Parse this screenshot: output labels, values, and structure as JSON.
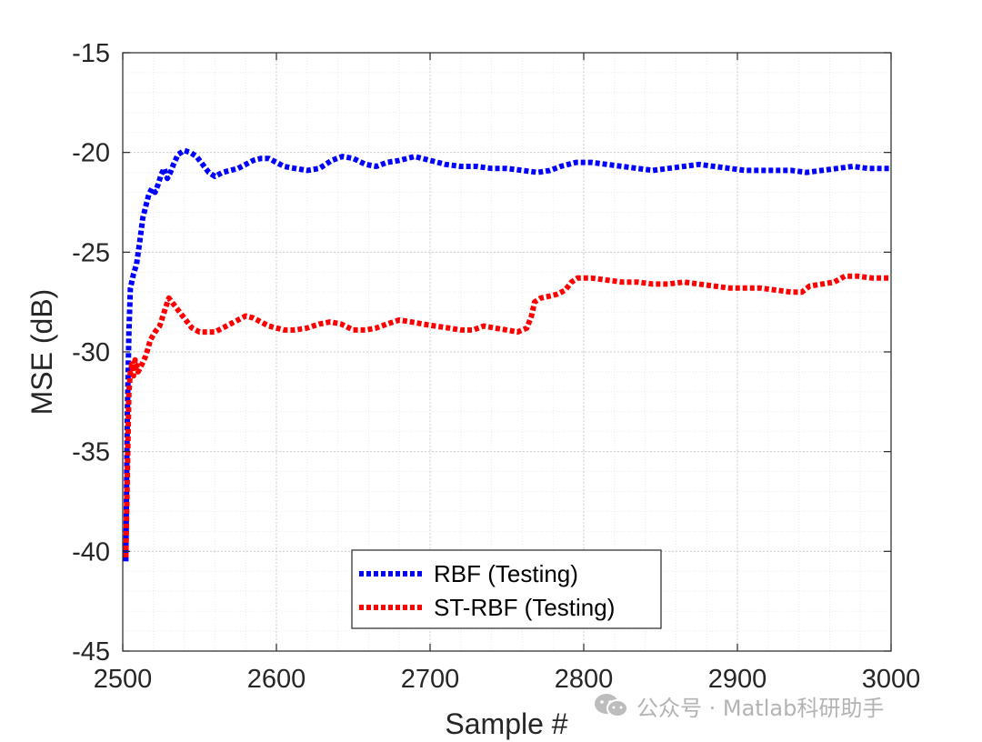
{
  "chart_data": {
    "type": "line",
    "xlabel": "Sample #",
    "ylabel": "MSE (dB)",
    "xlim": [
      2500,
      3000
    ],
    "ylim": [
      -45,
      -15
    ],
    "xticks": [
      2500,
      2600,
      2700,
      2800,
      2900,
      3000
    ],
    "yticks": [
      -15,
      -20,
      -25,
      -30,
      -35,
      -40,
      -45
    ],
    "grid": "major and minor, dotted",
    "legend_position": "bottom-center",
    "line_style": "dotted",
    "series": [
      {
        "name": "RBF (Testing)",
        "color": "#0000ff",
        "points": [
          [
            2502,
            -40.5
          ],
          [
            2503,
            -33
          ],
          [
            2504,
            -29
          ],
          [
            2505,
            -26.8
          ],
          [
            2507,
            -26.1
          ],
          [
            2509,
            -25.6
          ],
          [
            2511,
            -24.5
          ],
          [
            2513,
            -23.3
          ],
          [
            2515,
            -22.7
          ],
          [
            2517,
            -22.1
          ],
          [
            2519,
            -21.8
          ],
          [
            2521,
            -22.0
          ],
          [
            2523,
            -21.6
          ],
          [
            2525,
            -21.1
          ],
          [
            2527,
            -20.8
          ],
          [
            2529,
            -21.3
          ],
          [
            2531,
            -21.0
          ],
          [
            2533,
            -20.6
          ],
          [
            2536,
            -20.1
          ],
          [
            2540,
            -19.9
          ],
          [
            2544,
            -20.0
          ],
          [
            2548,
            -20.2
          ],
          [
            2552,
            -20.6
          ],
          [
            2556,
            -21.0
          ],
          [
            2560,
            -21.2
          ],
          [
            2565,
            -21.0
          ],
          [
            2570,
            -20.9
          ],
          [
            2575,
            -20.8
          ],
          [
            2580,
            -20.6
          ],
          [
            2585,
            -20.4
          ],
          [
            2590,
            -20.3
          ],
          [
            2595,
            -20.3
          ],
          [
            2600,
            -20.5
          ],
          [
            2605,
            -20.7
          ],
          [
            2612,
            -20.8
          ],
          [
            2620,
            -20.9
          ],
          [
            2628,
            -20.8
          ],
          [
            2636,
            -20.4
          ],
          [
            2643,
            -20.2
          ],
          [
            2650,
            -20.3
          ],
          [
            2658,
            -20.6
          ],
          [
            2665,
            -20.7
          ],
          [
            2672,
            -20.5
          ],
          [
            2680,
            -20.4
          ],
          [
            2690,
            -20.2
          ],
          [
            2700,
            -20.4
          ],
          [
            2710,
            -20.6
          ],
          [
            2720,
            -20.7
          ],
          [
            2730,
            -20.7
          ],
          [
            2740,
            -20.8
          ],
          [
            2750,
            -20.8
          ],
          [
            2760,
            -20.9
          ],
          [
            2770,
            -21.0
          ],
          [
            2778,
            -20.9
          ],
          [
            2785,
            -20.7
          ],
          [
            2795,
            -20.5
          ],
          [
            2805,
            -20.5
          ],
          [
            2815,
            -20.6
          ],
          [
            2825,
            -20.7
          ],
          [
            2835,
            -20.8
          ],
          [
            2845,
            -20.9
          ],
          [
            2855,
            -20.8
          ],
          [
            2865,
            -20.7
          ],
          [
            2875,
            -20.6
          ],
          [
            2885,
            -20.7
          ],
          [
            2895,
            -20.8
          ],
          [
            2905,
            -20.9
          ],
          [
            2915,
            -20.9
          ],
          [
            2925,
            -20.9
          ],
          [
            2935,
            -20.9
          ],
          [
            2945,
            -21.0
          ],
          [
            2955,
            -20.9
          ],
          [
            2965,
            -20.8
          ],
          [
            2975,
            -20.7
          ],
          [
            2985,
            -20.8
          ],
          [
            2995,
            -20.8
          ],
          [
            3000,
            -20.8
          ]
        ]
      },
      {
        "name": "ST-RBF (Testing)",
        "color": "#ff0000",
        "points": [
          [
            2502,
            -40.3
          ],
          [
            2503,
            -36
          ],
          [
            2504,
            -32
          ],
          [
            2505,
            -31
          ],
          [
            2506,
            -30.6
          ],
          [
            2507,
            -31.2
          ],
          [
            2508,
            -30.4
          ],
          [
            2510,
            -31.0
          ],
          [
            2512,
            -30.7
          ],
          [
            2515,
            -30.2
          ],
          [
            2518,
            -29.4
          ],
          [
            2521,
            -29.0
          ],
          [
            2524,
            -28.7
          ],
          [
            2527,
            -28.0
          ],
          [
            2530,
            -27.3
          ],
          [
            2533,
            -27.6
          ],
          [
            2537,
            -28.0
          ],
          [
            2541,
            -28.4
          ],
          [
            2545,
            -28.8
          ],
          [
            2550,
            -29.0
          ],
          [
            2555,
            -29.0
          ],
          [
            2560,
            -29.0
          ],
          [
            2565,
            -28.8
          ],
          [
            2570,
            -28.6
          ],
          [
            2575,
            -28.4
          ],
          [
            2580,
            -28.2
          ],
          [
            2585,
            -28.3
          ],
          [
            2590,
            -28.5
          ],
          [
            2595,
            -28.7
          ],
          [
            2600,
            -28.8
          ],
          [
            2605,
            -28.9
          ],
          [
            2612,
            -28.9
          ],
          [
            2620,
            -28.8
          ],
          [
            2628,
            -28.6
          ],
          [
            2635,
            -28.5
          ],
          [
            2642,
            -28.6
          ],
          [
            2650,
            -28.9
          ],
          [
            2658,
            -28.9
          ],
          [
            2665,
            -28.8
          ],
          [
            2672,
            -28.6
          ],
          [
            2680,
            -28.4
          ],
          [
            2688,
            -28.5
          ],
          [
            2695,
            -28.6
          ],
          [
            2703,
            -28.7
          ],
          [
            2712,
            -28.8
          ],
          [
            2720,
            -28.9
          ],
          [
            2728,
            -28.9
          ],
          [
            2735,
            -28.7
          ],
          [
            2742,
            -28.8
          ],
          [
            2750,
            -28.9
          ],
          [
            2757,
            -29.0
          ],
          [
            2763,
            -28.8
          ],
          [
            2766,
            -28.2
          ],
          [
            2768,
            -27.5
          ],
          [
            2772,
            -27.3
          ],
          [
            2778,
            -27.2
          ],
          [
            2783,
            -27.1
          ],
          [
            2788,
            -26.9
          ],
          [
            2792,
            -26.5
          ],
          [
            2796,
            -26.3
          ],
          [
            2805,
            -26.3
          ],
          [
            2815,
            -26.4
          ],
          [
            2825,
            -26.5
          ],
          [
            2835,
            -26.5
          ],
          [
            2845,
            -26.6
          ],
          [
            2855,
            -26.6
          ],
          [
            2865,
            -26.5
          ],
          [
            2875,
            -26.6
          ],
          [
            2885,
            -26.7
          ],
          [
            2895,
            -26.8
          ],
          [
            2905,
            -26.8
          ],
          [
            2915,
            -26.8
          ],
          [
            2925,
            -26.9
          ],
          [
            2935,
            -27.0
          ],
          [
            2942,
            -27.0
          ],
          [
            2947,
            -26.7
          ],
          [
            2955,
            -26.6
          ],
          [
            2963,
            -26.5
          ],
          [
            2970,
            -26.2
          ],
          [
            2978,
            -26.2
          ],
          [
            2988,
            -26.3
          ],
          [
            2995,
            -26.3
          ],
          [
            3000,
            -26.3
          ]
        ]
      }
    ]
  },
  "watermark": {
    "text": "公众号 · Matlab科研助手",
    "icon": "wechat-icon"
  }
}
